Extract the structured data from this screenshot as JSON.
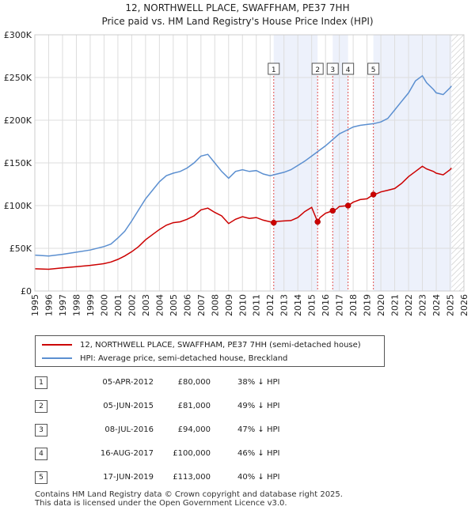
{
  "title": "12, NORTHWELL PLACE, SWAFFHAM, PE37 7HH",
  "subtitle": "Price paid vs. HM Land Registry's House Price Index (HPI)",
  "chart_data": {
    "type": "line",
    "title": "12, NORTHWELL PLACE, SWAFFHAM, PE37 7HH",
    "subtitle": "Price paid vs. HM Land Registry's House Price Index (HPI)",
    "xlim": [
      1995,
      2026
    ],
    "ylim": [
      0,
      300000
    ],
    "x_ticks": [
      "1995",
      "1996",
      "1997",
      "1998",
      "1999",
      "2000",
      "2001",
      "2002",
      "2003",
      "2004",
      "2005",
      "2006",
      "2007",
      "2008",
      "2009",
      "2010",
      "2011",
      "2012",
      "2013",
      "2014",
      "2015",
      "2016",
      "2017",
      "2018",
      "2019",
      "2020",
      "2021",
      "2022",
      "2023",
      "2024",
      "2025",
      "2026"
    ],
    "y_ticks": [
      {
        "value": 0,
        "label": "£0"
      },
      {
        "value": 50000,
        "label": "£50K"
      },
      {
        "value": 100000,
        "label": "£100K"
      },
      {
        "value": 150000,
        "label": "£150K"
      },
      {
        "value": 200000,
        "label": "£200K"
      },
      {
        "value": 250000,
        "label": "£250K"
      },
      {
        "value": 300000,
        "label": "£300K"
      }
    ],
    "grid": true,
    "future_hatch_from": 2025.1,
    "series": [
      {
        "name": "12, NORTHWELL PLACE, SWAFFHAM, PE37 7HH (semi-detached house)",
        "color": "#cc0000",
        "x": [
          1995,
          1996,
          1997,
          1998,
          1999,
          2000,
          2000.5,
          2001,
          2001.5,
          2002,
          2002.5,
          2003,
          2003.5,
          2004,
          2004.5,
          2005,
          2005.5,
          2006,
          2006.5,
          2007,
          2007.5,
          2008,
          2008.5,
          2009,
          2009.5,
          2010,
          2010.5,
          2011,
          2011.5,
          2012.26,
          2012.5,
          2013,
          2013.5,
          2014,
          2014.5,
          2015,
          2015.43,
          2015.6,
          2016,
          2016.52,
          2016.8,
          2017,
          2017.63,
          2018,
          2018.5,
          2019,
          2019.46,
          2019.7,
          2020,
          2020.5,
          2021,
          2021.5,
          2022,
          2022.5,
          2023,
          2023.3,
          2023.8,
          2024,
          2024.5,
          2025,
          2025.1
        ],
        "values": [
          26000,
          25500,
          27000,
          28500,
          30000,
          32000,
          34000,
          37000,
          41000,
          46000,
          52000,
          60000,
          66000,
          72000,
          77000,
          80000,
          81000,
          84000,
          88000,
          95000,
          97000,
          92000,
          88000,
          79000,
          84000,
          87000,
          85000,
          86000,
          83000,
          80000,
          81500,
          82000,
          82500,
          86000,
          93000,
          98000,
          81000,
          86000,
          91000,
          94000,
          96000,
          99000,
          100000,
          104000,
          107000,
          108000,
          113000,
          114000,
          116000,
          118000,
          120000,
          126000,
          134000,
          140000,
          146000,
          143000,
          140000,
          138000,
          136000,
          142000,
          144000
        ]
      },
      {
        "name": "HPI: Average price, semi-detached house, Breckland",
        "color": "#5b8fd0",
        "x": [
          1995,
          1996,
          1997,
          1998,
          1999,
          2000,
          2000.5,
          2001,
          2001.5,
          2002,
          2002.5,
          2003,
          2003.5,
          2004,
          2004.5,
          2005,
          2005.5,
          2006,
          2006.5,
          2007,
          2007.5,
          2008,
          2008.5,
          2009,
          2009.5,
          2010,
          2010.5,
          2011,
          2011.5,
          2012,
          2012.5,
          2013,
          2013.5,
          2014,
          2014.5,
          2015,
          2015.5,
          2016,
          2016.5,
          2017,
          2017.5,
          2018,
          2018.5,
          2019,
          2019.5,
          2020,
          2020.5,
          2021,
          2021.5,
          2022,
          2022.5,
          2023,
          2023.3,
          2023.8,
          2024,
          2024.5,
          2025,
          2025.1
        ],
        "values": [
          42000,
          41000,
          43000,
          45500,
          48000,
          52000,
          55000,
          62000,
          70000,
          82000,
          95000,
          108000,
          118000,
          128000,
          135000,
          138000,
          140000,
          144000,
          150000,
          158000,
          160000,
          150000,
          140000,
          132000,
          140000,
          142000,
          140000,
          141000,
          137000,
          135000,
          137000,
          139000,
          142000,
          147000,
          152000,
          158000,
          164000,
          170000,
          177000,
          184000,
          188000,
          192000,
          194000,
          195000,
          196000,
          198000,
          202000,
          212000,
          222000,
          232000,
          246000,
          252000,
          244000,
          236000,
          232000,
          230000,
          238000,
          240000
        ]
      }
    ],
    "sales": [
      {
        "id": "1",
        "x": 2012.26,
        "value": 80000
      },
      {
        "id": "2",
        "x": 2015.43,
        "value": 81000
      },
      {
        "id": "3",
        "x": 2016.52,
        "value": 94000
      },
      {
        "id": "4",
        "x": 2017.63,
        "value": 100000
      },
      {
        "id": "5",
        "x": 2019.46,
        "value": 113000
      }
    ]
  },
  "legend": {
    "items": [
      {
        "label": "12, NORTHWELL PLACE, SWAFFHAM, PE37 7HH (semi-detached house)",
        "color": "#cc0000"
      },
      {
        "label": "HPI: Average price, semi-detached house, Breckland",
        "color": "#5b8fd0"
      }
    ]
  },
  "table": {
    "rows": [
      {
        "num": "1",
        "date": "05-APR-2012",
        "price": "£80,000",
        "hpi": "38% ↓ HPI"
      },
      {
        "num": "2",
        "date": "05-JUN-2015",
        "price": "£81,000",
        "hpi": "49% ↓ HPI"
      },
      {
        "num": "3",
        "date": "08-JUL-2016",
        "price": "£94,000",
        "hpi": "47% ↓ HPI"
      },
      {
        "num": "4",
        "date": "16-AUG-2017",
        "price": "£100,000",
        "hpi": "46% ↓ HPI"
      },
      {
        "num": "5",
        "date": "17-JUN-2019",
        "price": "£113,000",
        "hpi": "40% ↓ HPI"
      }
    ]
  },
  "footer": {
    "line1": "Contains HM Land Registry data © Crown copyright and database right 2025.",
    "line2": "This data is licensed under the Open Government Licence v3.0."
  }
}
